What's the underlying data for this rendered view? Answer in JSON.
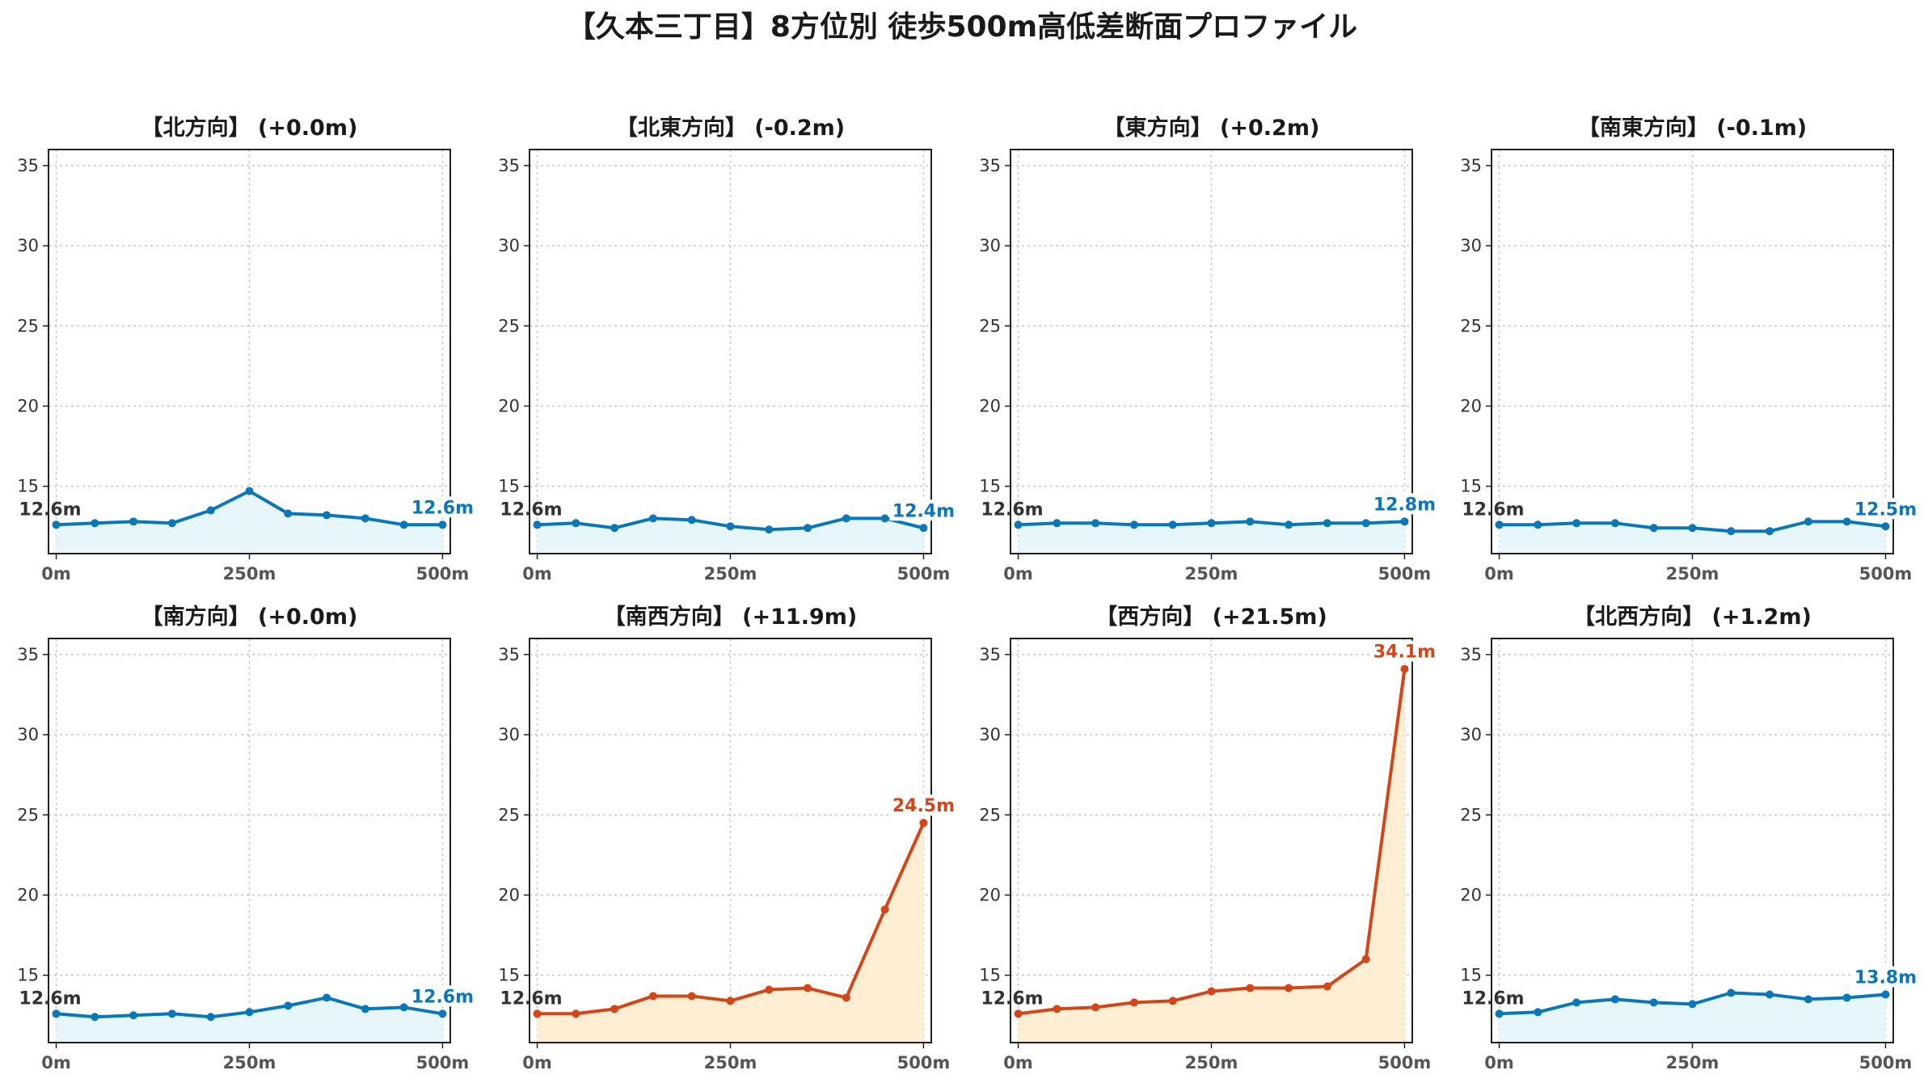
{
  "title": "【久本三丁目】8方位別 徒歩500m高低差断面プロファイル",
  "colors": {
    "flat_line": "#0a77b8",
    "flat_fill": "#e6f6fb",
    "steep_line": "#d24719",
    "steep_fill": "#feeed4",
    "grid": "#c8c8c8",
    "axis": "#222222"
  },
  "chart_data": [
    {
      "type": "line",
      "title": "【北方向】 (+0.0m)",
      "x": [
        0,
        50,
        100,
        150,
        200,
        250,
        300,
        350,
        400,
        450,
        500
      ],
      "values": [
        12.6,
        12.7,
        12.8,
        12.7,
        13.5,
        14.7,
        13.3,
        13.2,
        13.0,
        12.6,
        12.6
      ],
      "start_label": "12.6m",
      "end_label": "12.6m",
      "color": "flat",
      "xticks": [
        "0m",
        "250m",
        "500m"
      ],
      "yticks": [
        15,
        20,
        25,
        30,
        35
      ],
      "ylim": [
        10.8,
        36
      ],
      "xlim": [
        -10,
        510
      ],
      "grid": true
    },
    {
      "type": "line",
      "title": "【北東方向】 (-0.2m)",
      "x": [
        0,
        50,
        100,
        150,
        200,
        250,
        300,
        350,
        400,
        450,
        500
      ],
      "values": [
        12.6,
        12.7,
        12.4,
        13.0,
        12.9,
        12.5,
        12.3,
        12.4,
        13.0,
        13.0,
        12.4
      ],
      "start_label": "12.6m",
      "end_label": "12.4m",
      "color": "flat",
      "xticks": [
        "0m",
        "250m",
        "500m"
      ],
      "yticks": [
        15,
        20,
        25,
        30,
        35
      ],
      "ylim": [
        10.8,
        36
      ],
      "xlim": [
        -10,
        510
      ],
      "grid": true
    },
    {
      "type": "line",
      "title": "【東方向】 (+0.2m)",
      "x": [
        0,
        50,
        100,
        150,
        200,
        250,
        300,
        350,
        400,
        450,
        500
      ],
      "values": [
        12.6,
        12.7,
        12.7,
        12.6,
        12.6,
        12.7,
        12.8,
        12.6,
        12.7,
        12.7,
        12.8
      ],
      "start_label": "12.6m",
      "end_label": "12.8m",
      "color": "flat",
      "xticks": [
        "0m",
        "250m",
        "500m"
      ],
      "yticks": [
        15,
        20,
        25,
        30,
        35
      ],
      "ylim": [
        10.8,
        36
      ],
      "xlim": [
        -10,
        510
      ],
      "grid": true
    },
    {
      "type": "line",
      "title": "【南東方向】 (-0.1m)",
      "x": [
        0,
        50,
        100,
        150,
        200,
        250,
        300,
        350,
        400,
        450,
        500
      ],
      "values": [
        12.6,
        12.6,
        12.7,
        12.7,
        12.4,
        12.4,
        12.2,
        12.2,
        12.8,
        12.8,
        12.5
      ],
      "start_label": "12.6m",
      "end_label": "12.5m",
      "color": "flat",
      "xticks": [
        "0m",
        "250m",
        "500m"
      ],
      "yticks": [
        15,
        20,
        25,
        30,
        35
      ],
      "ylim": [
        10.8,
        36
      ],
      "xlim": [
        -10,
        510
      ],
      "grid": true
    },
    {
      "type": "line",
      "title": "【南方向】 (+0.0m)",
      "x": [
        0,
        50,
        100,
        150,
        200,
        250,
        300,
        350,
        400,
        450,
        500
      ],
      "values": [
        12.6,
        12.4,
        12.5,
        12.6,
        12.4,
        12.7,
        13.1,
        13.6,
        12.9,
        13.0,
        12.6
      ],
      "start_label": "12.6m",
      "end_label": "12.6m",
      "color": "flat",
      "xticks": [
        "0m",
        "250m",
        "500m"
      ],
      "yticks": [
        15,
        20,
        25,
        30,
        35
      ],
      "ylim": [
        10.8,
        36
      ],
      "xlim": [
        -10,
        510
      ],
      "grid": true
    },
    {
      "type": "line",
      "title": "【南西方向】 (+11.9m)",
      "x": [
        0,
        50,
        100,
        150,
        200,
        250,
        300,
        350,
        400,
        450,
        500
      ],
      "values": [
        12.6,
        12.6,
        12.9,
        13.7,
        13.7,
        13.4,
        14.1,
        14.2,
        13.6,
        19.1,
        24.5
      ],
      "start_label": "12.6m",
      "end_label": "24.5m",
      "color": "steep",
      "xticks": [
        "0m",
        "250m",
        "500m"
      ],
      "yticks": [
        15,
        20,
        25,
        30,
        35
      ],
      "ylim": [
        10.8,
        36
      ],
      "xlim": [
        -10,
        510
      ],
      "grid": true
    },
    {
      "type": "line",
      "title": "【西方向】 (+21.5m)",
      "x": [
        0,
        50,
        100,
        150,
        200,
        250,
        300,
        350,
        400,
        450,
        500
      ],
      "values": [
        12.6,
        12.9,
        13.0,
        13.3,
        13.4,
        14.0,
        14.2,
        14.2,
        14.3,
        16.0,
        34.1
      ],
      "start_label": "12.6m",
      "end_label": "34.1m",
      "color": "steep",
      "xticks": [
        "0m",
        "250m",
        "500m"
      ],
      "yticks": [
        15,
        20,
        25,
        30,
        35
      ],
      "ylim": [
        10.8,
        36
      ],
      "xlim": [
        -10,
        510
      ],
      "grid": true
    },
    {
      "type": "line",
      "title": "【北西方向】 (+1.2m)",
      "x": [
        0,
        50,
        100,
        150,
        200,
        250,
        300,
        350,
        400,
        450,
        500
      ],
      "values": [
        12.6,
        12.7,
        13.3,
        13.5,
        13.3,
        13.2,
        13.9,
        13.8,
        13.5,
        13.6,
        13.8
      ],
      "start_label": "12.6m",
      "end_label": "13.8m",
      "color": "flat",
      "xticks": [
        "0m",
        "250m",
        "500m"
      ],
      "yticks": [
        15,
        20,
        25,
        30,
        35
      ],
      "ylim": [
        10.8,
        36
      ],
      "xlim": [
        -10,
        510
      ],
      "grid": true
    }
  ]
}
